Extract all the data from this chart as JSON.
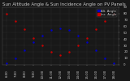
{
  "title": "Sun Altitude Angle & Sun Incidence Angle on PV Panels",
  "legend_labels": [
    "Alt. Angle",
    "Inc. Angle"
  ],
  "blue_color": "#0000cc",
  "red_color": "#cc0000",
  "bg_color": "#181818",
  "plot_bg": "#181818",
  "grid_color": "#555555",
  "text_color": "#cccccc",
  "x_labels": [
    "6:00",
    "7:00",
    "8:00",
    "9:00",
    "10:00",
    "11:00",
    "12:00",
    "13:00",
    "14:00",
    "15:00",
    "16:00",
    "17:00",
    "18:00"
  ],
  "time_points": [
    0,
    1,
    2,
    3,
    4,
    5,
    6,
    7,
    8,
    9,
    10,
    11,
    12
  ],
  "alt_angle": [
    2,
    10,
    22,
    35,
    46,
    54,
    57,
    54,
    46,
    35,
    22,
    10,
    2
  ],
  "inc_angle": [
    80,
    68,
    55,
    42,
    30,
    20,
    15,
    20,
    30,
    42,
    55,
    68,
    80
  ],
  "ylim": [
    0,
    90
  ],
  "yticks": [
    0,
    10,
    20,
    30,
    40,
    50,
    60,
    70,
    80,
    90
  ],
  "title_fontsize": 4.0,
  "tick_fontsize": 2.8,
  "legend_fontsize": 2.8,
  "marker_size": 1.5
}
